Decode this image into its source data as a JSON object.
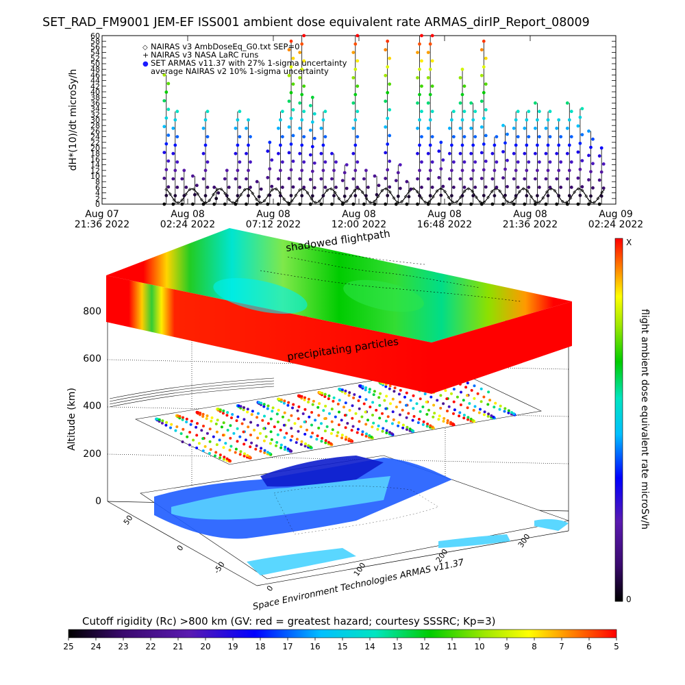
{
  "title": "SET_RAD_FM9001   JEM-EF ISS001 ambient dose equivalent rate ARMAS_dirIP_Report_08009",
  "colors": {
    "nairas_v3_ambdose": "#000000",
    "nairas_v3_larc": "#000000",
    "set_armas": "#1a1aff",
    "background": "#ffffff"
  },
  "chart_data": [
    {
      "type": "scatter",
      "ylabel": "dH*(10)/dt microSy/h",
      "ylim": [
        0,
        60
      ],
      "yticks": [
        "0",
        "2",
        "4",
        "6",
        "8",
        "10",
        "12",
        "14",
        "16",
        "18",
        "20",
        "22",
        "24",
        "26",
        "28",
        "30",
        "32",
        "34",
        "36",
        "38",
        "40",
        "42",
        "44",
        "46",
        "48",
        "50",
        "52",
        "54",
        "56",
        "58",
        "60"
      ],
      "xticks": [
        {
          "line1": "Aug 07",
          "line2": "21:36 2022"
        },
        {
          "line1": "Aug 08",
          "line2": "02:24 2022"
        },
        {
          "line1": "Aug 08",
          "line2": "07:12 2022"
        },
        {
          "line1": "Aug 08",
          "line2": "12:00 2022"
        },
        {
          "line1": "Aug 08",
          "line2": "16:48 2022"
        },
        {
          "line1": "Aug 08",
          "line2": "21:36 2022"
        },
        {
          "line1": "Aug 09",
          "line2": "02:24 2022"
        }
      ],
      "legend_position": "top-left",
      "legend": [
        {
          "symbol": "◇",
          "label": "NAIRAS v3 AmbDoseEq_G0.txt SEP=0"
        },
        {
          "symbol": "+",
          "label": "NAIRAS v3 NASA LaRC runs"
        },
        {
          "symbol": "●",
          "label": "SET ARMAS v11.37 with 27% 1-sigma uncertainty"
        },
        {
          "symbol": "",
          "label": "average NAIRAS v2 10% 1-sigma uncertainty"
        }
      ],
      "series": [
        {
          "name": "SET ARMAS v11.37 with 27% 1-sigma uncertainty",
          "x_hours_from_first_tick": [
            3.6,
            4.1,
            4.6,
            5.2,
            5.8,
            6.4,
            7.0,
            7.6,
            8.2,
            8.8,
            9.4,
            10.0,
            10.6,
            11.2,
            11.8,
            12.4,
            13.0,
            13.6,
            14.2,
            14.8,
            15.4,
            16.0,
            16.6,
            17.2,
            17.8,
            18.4,
            19.0,
            19.6,
            20.2,
            20.8,
            21.4,
            22.0,
            22.6,
            23.2,
            23.8,
            24.4,
            25.0,
            25.6,
            26.2,
            26.8,
            27.4,
            28.0
          ],
          "peak_values": [
            46,
            33,
            12,
            10,
            33,
            6,
            12,
            33,
            30,
            8,
            22,
            33,
            58,
            60,
            38,
            33,
            18,
            14,
            60,
            12,
            10,
            58,
            14,
            8,
            60,
            60,
            22,
            33,
            48,
            36,
            58,
            24,
            28,
            33,
            33,
            36,
            33,
            30,
            36,
            34,
            26,
            20
          ]
        },
        {
          "name": "NAIRAS v3 AmbDoseEq_G0.txt SEP=0",
          "pattern": "oscillating",
          "min": 0.5,
          "max": 5.5,
          "period_hours": 1.55
        }
      ]
    },
    {
      "type": "heatmap",
      "yaxis_label": "Altitude (km)",
      "zticks": [
        "0",
        "200",
        "400",
        "600",
        "800"
      ],
      "lat_ticks": [
        "-50",
        "0",
        "50"
      ],
      "lon_ticks": [
        "0",
        "100",
        "200",
        "300"
      ],
      "annotations": [
        "shadowed flightpath",
        "precipitating particles"
      ],
      "credit": "Space Environment Technologies ARMAS v11.37",
      "colorbar": {
        "label": "flight ambient dose equivalent rate microSv/h",
        "top": "X",
        "bottom": "0"
      }
    },
    {
      "type": "heatmap",
      "title": "Cutoff rigidity (Rc) >800 km (GV: red = greatest hazard; courtesy SSSRC; Kp=3)",
      "ticks": [
        "25",
        "24",
        "23",
        "22",
        "21",
        "20",
        "19",
        "18",
        "17",
        "16",
        "15",
        "14",
        "13",
        "12",
        "11",
        "10",
        "9",
        "8",
        "7",
        "6",
        "5"
      ]
    }
  ]
}
